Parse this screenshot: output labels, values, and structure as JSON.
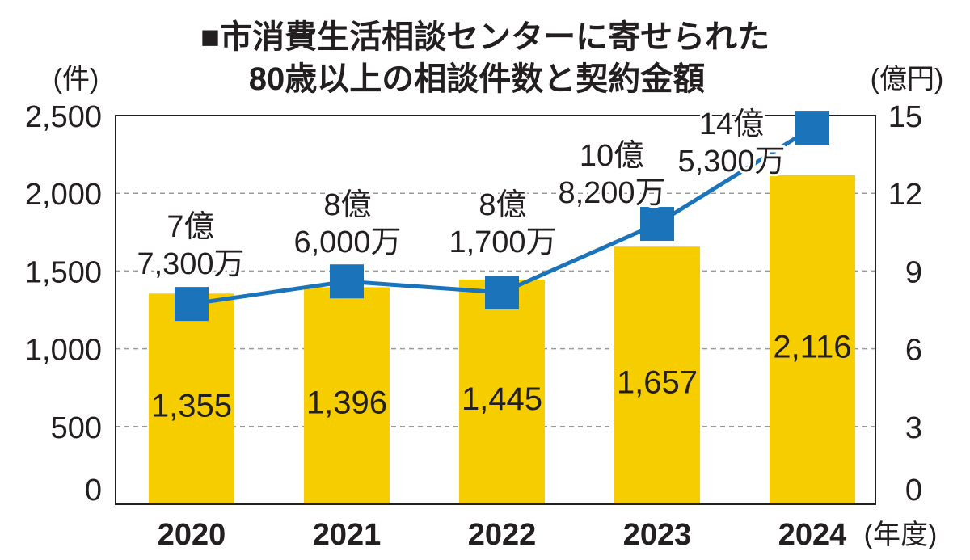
{
  "chart_data": {
    "type": "bar",
    "title": [
      "■市消費生活相談センターに寄せられた",
      "80歳以上の相談件数と契約金額"
    ],
    "categories": [
      "2020",
      "2021",
      "2022",
      "2023",
      "2024"
    ],
    "x_axis": {
      "label": "(年度)"
    },
    "y_axis": {
      "label": "(件)",
      "min": 0,
      "max": 2500,
      "ticks": [
        2500,
        2000,
        1500,
        1000,
        500,
        0
      ],
      "tick_labels": [
        "2,500",
        "2,000",
        "1,500",
        "1,000",
        "500",
        "0"
      ]
    },
    "y2_axis": {
      "label": "(億円)",
      "min": 0,
      "max": 15,
      "ticks": [
        15,
        12,
        9,
        6,
        3,
        0
      ],
      "tick_labels": [
        "15",
        "12",
        "9",
        "6",
        "3",
        "0"
      ]
    },
    "grid": true,
    "series": [
      {
        "type": "bar",
        "axis": "left",
        "values": [
          1355,
          1396,
          1445,
          1657,
          2116
        ],
        "labels": [
          "1,355",
          "1,396",
          "1,445",
          "1,657",
          "2,116"
        ],
        "color": "#F6CE00"
      },
      {
        "type": "line",
        "axis": "right",
        "values": [
          7.73,
          8.6,
          8.17,
          10.82,
          14.53
        ],
        "labels": [
          [
            "7億",
            "7,300万"
          ],
          [
            "8億",
            "6,000万"
          ],
          [
            "8億",
            "1,700万"
          ],
          [
            "10億",
            "8,200万"
          ],
          [
            "14億",
            "5,300万"
          ]
        ],
        "color": "#1B73BA"
      }
    ]
  }
}
